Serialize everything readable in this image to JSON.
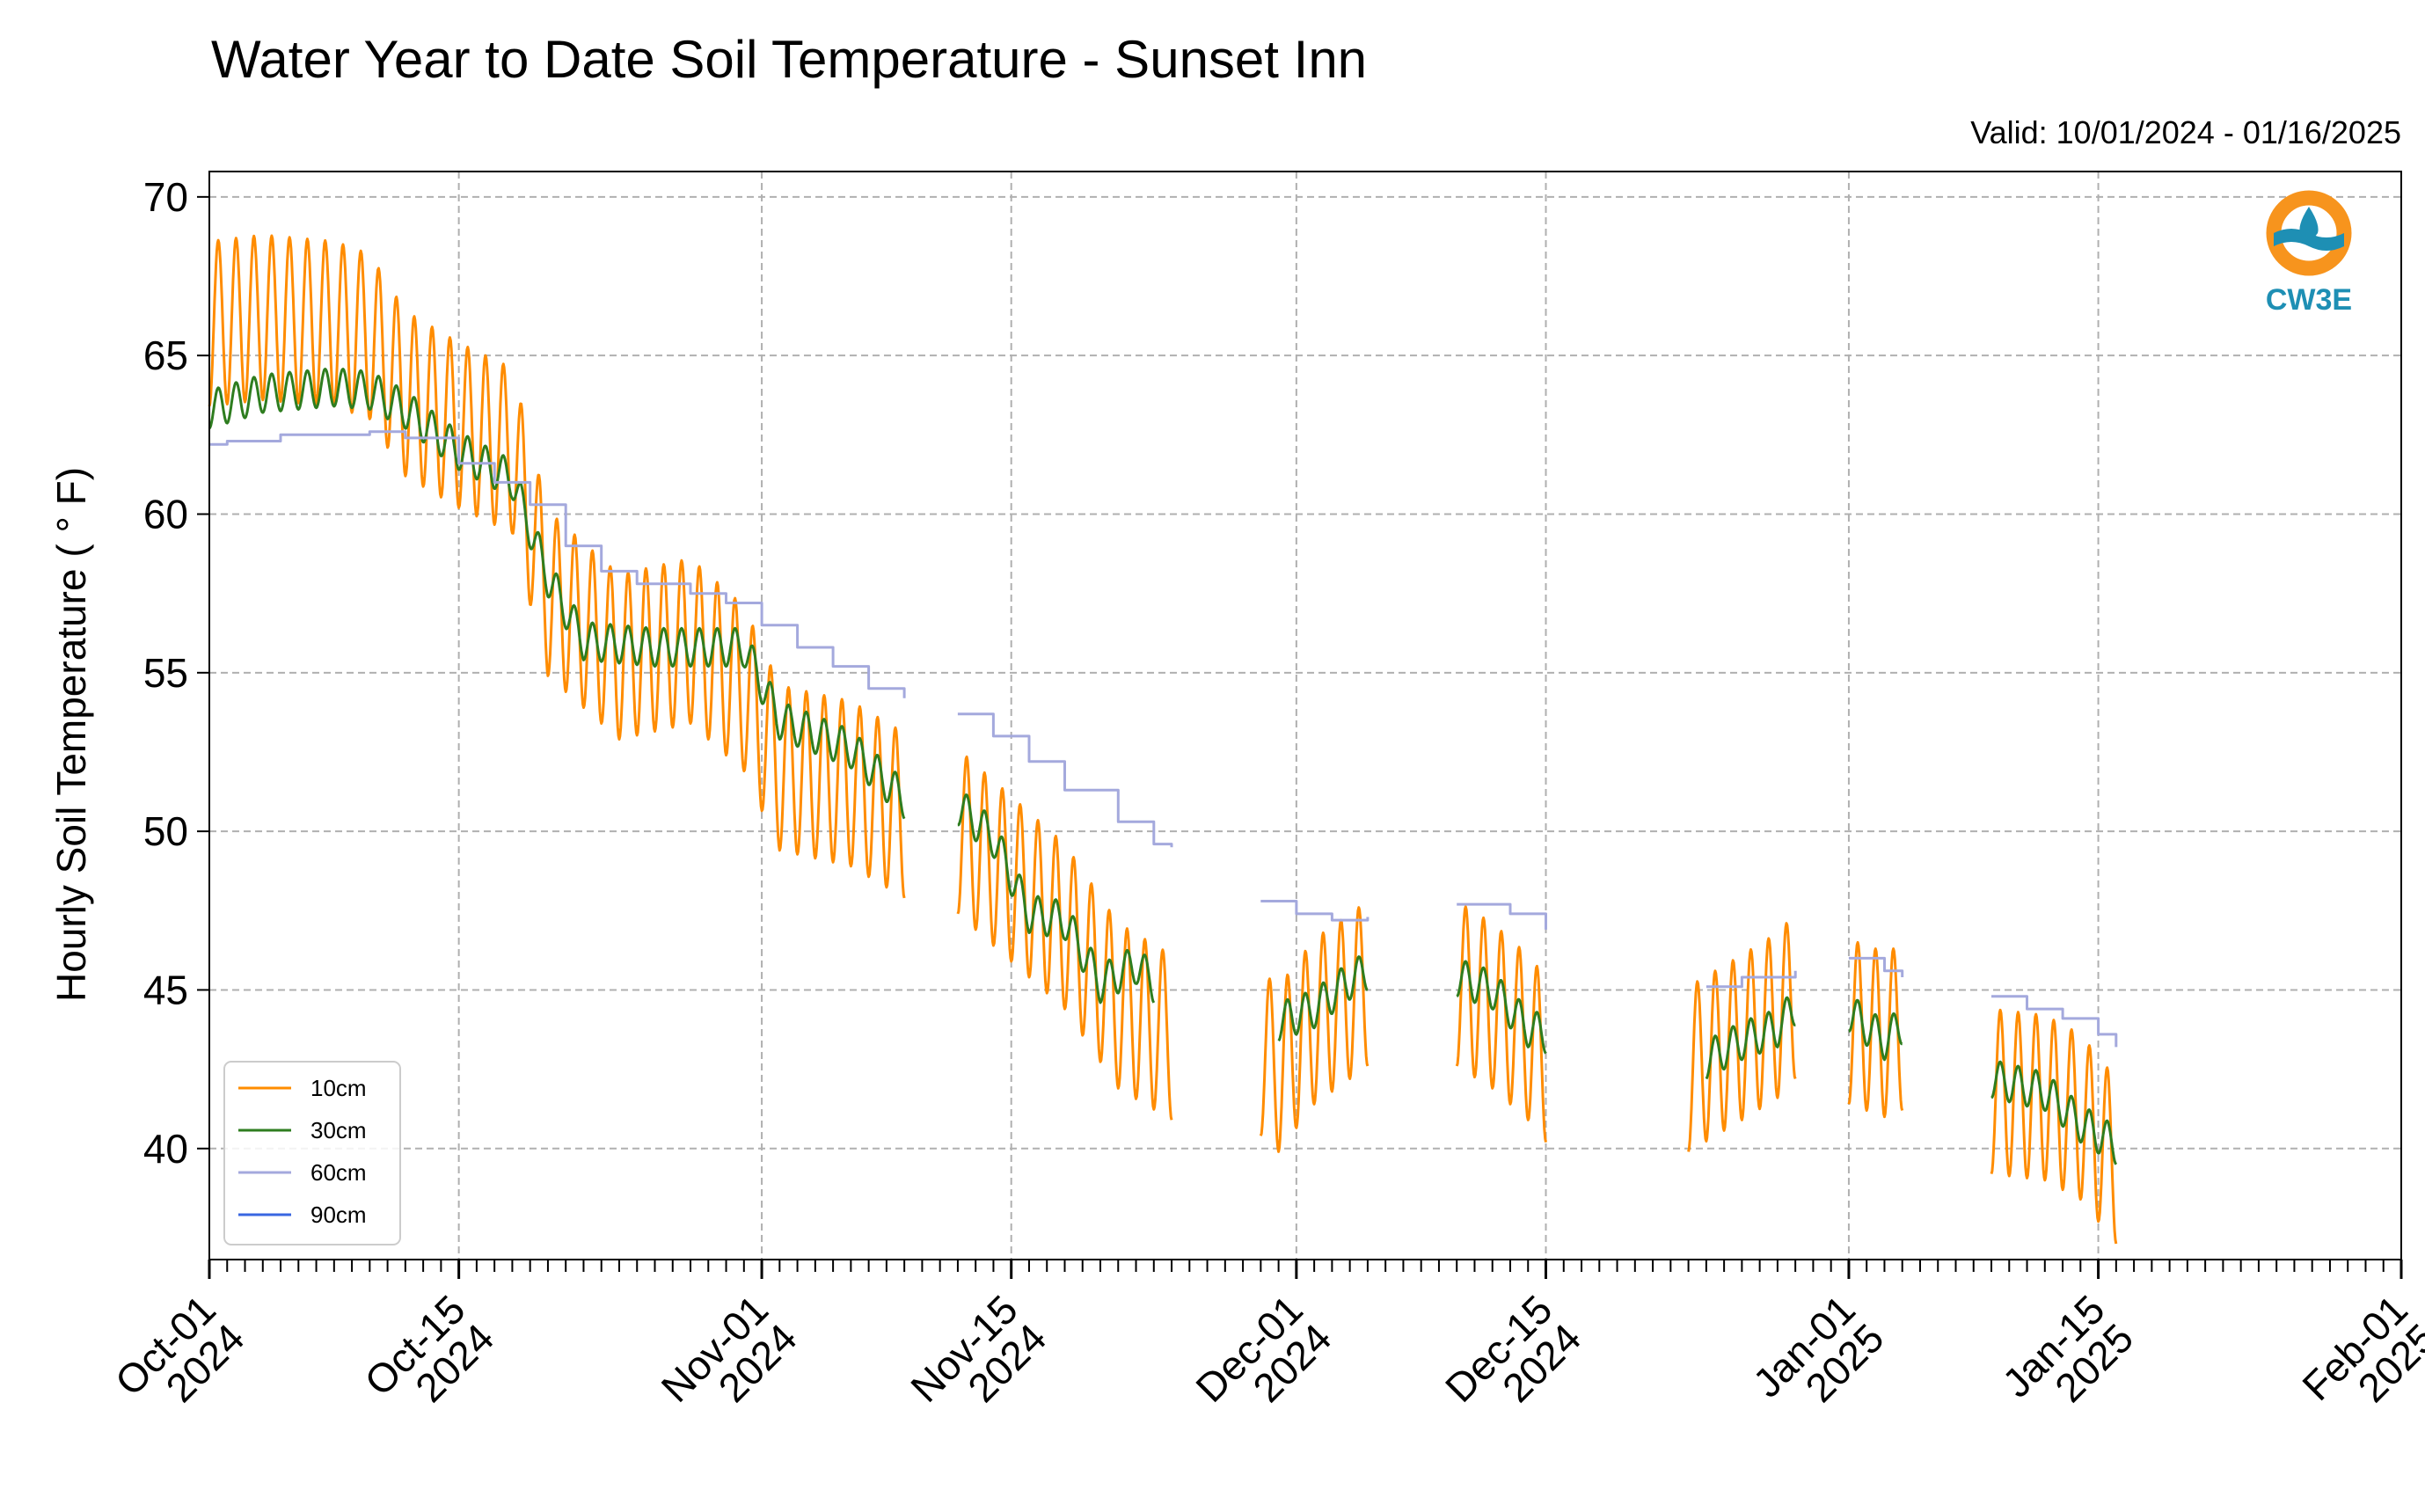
{
  "chart_data": {
    "type": "line",
    "title": "Water Year to Date Soil Temperature - Sunset Inn",
    "subtitle": "Valid: 10/01/2024 - 01/16/2025",
    "ylabel": "Hourly Soil Temperature ( ° F)",
    "xlabel": "",
    "ylim": [
      36.5,
      70.8
    ],
    "xlim": [
      "2024-10-01",
      "2025-02-01"
    ],
    "grid": true,
    "legend_position": "lower-left",
    "yticks": [
      40,
      45,
      50,
      55,
      60,
      65,
      70
    ],
    "xticks": [
      {
        "date": "2024-10-01",
        "line1": "Oct-01",
        "line2": "2024"
      },
      {
        "date": "2024-10-15",
        "line1": "Oct-15",
        "line2": "2024"
      },
      {
        "date": "2024-11-01",
        "line1": "Nov-01",
        "line2": "2024"
      },
      {
        "date": "2024-11-15",
        "line1": "Nov-15",
        "line2": "2024"
      },
      {
        "date": "2024-12-01",
        "line1": "Dec-01",
        "line2": "2024"
      },
      {
        "date": "2024-12-15",
        "line1": "Dec-15",
        "line2": "2024"
      },
      {
        "date": "2025-01-01",
        "line1": "Jan-01",
        "line2": "2025"
      },
      {
        "date": "2025-01-15",
        "line1": "Jan-15",
        "line2": "2025"
      },
      {
        "date": "2025-02-01",
        "line1": "Feb-01",
        "line2": "2025"
      }
    ],
    "series": [
      {
        "name": "10cm",
        "color": "#ff8c00",
        "amplitude": 2.6,
        "segments": [
          [
            [
              "2024-10-01",
              66.0
            ],
            [
              "2024-10-04",
              66.2
            ],
            [
              "2024-10-08",
              66.0
            ],
            [
              "2024-10-10",
              65.6
            ],
            [
              "2024-10-12",
              63.8
            ],
            [
              "2024-10-15",
              62.8
            ],
            [
              "2024-10-18",
              62.0
            ],
            [
              "2024-10-20",
              57.5
            ],
            [
              "2024-10-24",
              55.5
            ],
            [
              "2024-10-28",
              56.0
            ],
            [
              "2024-10-31",
              54.5
            ],
            [
              "2024-11-02",
              52.0
            ],
            [
              "2024-11-06",
              51.5
            ],
            [
              "2024-11-09",
              50.5
            ]
          ],
          [
            [
              "2024-11-12",
              50.0
            ],
            [
              "2024-11-15",
              48.5
            ],
            [
              "2024-11-18",
              47.0
            ],
            [
              "2024-11-21",
              44.5
            ],
            [
              "2024-11-24",
              43.5
            ]
          ],
          [
            [
              "2024-11-29",
              43.0
            ],
            [
              "2024-11-30",
              42.5
            ],
            [
              "2024-12-02",
              44.0
            ],
            [
              "2024-12-05",
              45.2
            ]
          ],
          [
            [
              "2024-12-10",
              45.2
            ],
            [
              "2024-12-12",
              44.5
            ],
            [
              "2024-12-14",
              43.5
            ],
            [
              "2024-12-15",
              42.8
            ]
          ],
          [
            [
              "2024-12-23",
              42.5
            ],
            [
              "2024-12-26",
              43.5
            ],
            [
              "2024-12-28",
              44.2
            ],
            [
              "2024-12-29",
              44.8
            ]
          ],
          [
            [
              "2025-01-01",
              44.0
            ],
            [
              "2025-01-03",
              43.6
            ],
            [
              "2025-01-04",
              43.8
            ]
          ],
          [
            [
              "2025-01-09",
              41.8
            ],
            [
              "2025-01-12",
              41.6
            ],
            [
              "2025-01-14",
              41.0
            ],
            [
              "2025-01-16",
              39.6
            ]
          ]
        ]
      },
      {
        "name": "30cm",
        "color": "#2e7d1f",
        "amplitude": 0.6,
        "segments": [
          [
            [
              "2024-10-01",
              63.3
            ],
            [
              "2024-10-04",
              63.8
            ],
            [
              "2024-10-08",
              64.0
            ],
            [
              "2024-10-10",
              63.9
            ],
            [
              "2024-10-12",
              63.3
            ],
            [
              "2024-10-15",
              62.0
            ],
            [
              "2024-10-18",
              61.1
            ],
            [
              "2024-10-20",
              58.0
            ],
            [
              "2024-10-22",
              56.0
            ],
            [
              "2024-10-26",
              55.8
            ],
            [
              "2024-10-31",
              55.8
            ],
            [
              "2024-11-02",
              53.5
            ],
            [
              "2024-11-06",
              52.6
            ],
            [
              "2024-11-09",
              51.0
            ]
          ],
          [
            [
              "2024-11-12",
              50.8
            ],
            [
              "2024-11-14",
              49.8
            ],
            [
              "2024-11-16",
              47.4
            ],
            [
              "2024-11-18",
              47.2
            ],
            [
              "2024-11-20",
              45.2
            ],
            [
              "2024-11-22",
              45.8
            ],
            [
              "2024-11-23",
              45.2
            ]
          ],
          [
            [
              "2024-11-30",
              44.0
            ],
            [
              "2024-12-02",
              44.4
            ],
            [
              "2024-12-04",
              45.3
            ],
            [
              "2024-12-05",
              45.6
            ]
          ],
          [
            [
              "2024-12-10",
              45.4
            ],
            [
              "2024-12-12",
              45.0
            ],
            [
              "2024-12-14",
              43.8
            ],
            [
              "2024-12-15",
              43.6
            ]
          ],
          [
            [
              "2024-12-24",
              42.8
            ],
            [
              "2024-12-26",
              43.4
            ],
            [
              "2024-12-28",
              43.8
            ],
            [
              "2024-12-29",
              44.5
            ]
          ],
          [
            [
              "2025-01-01",
              44.3
            ],
            [
              "2025-01-03",
              43.4
            ],
            [
              "2025-01-04",
              43.9
            ]
          ],
          [
            [
              "2025-01-09",
              42.2
            ],
            [
              "2025-01-12",
              41.8
            ],
            [
              "2025-01-14",
              40.8
            ],
            [
              "2025-01-16",
              40.1
            ]
          ]
        ]
      },
      {
        "name": "60cm",
        "color": "#a4a9dd",
        "amplitude": 0,
        "segments": [
          [
            [
              "2024-10-01",
              62.2
            ],
            [
              "2024-10-02",
              62.3
            ],
            [
              "2024-10-05",
              62.5
            ],
            [
              "2024-10-10",
              62.6
            ],
            [
              "2024-10-12",
              62.4
            ],
            [
              "2024-10-15",
              61.6
            ],
            [
              "2024-10-17",
              61.0
            ],
            [
              "2024-10-19",
              60.3
            ],
            [
              "2024-10-21",
              59.0
            ],
            [
              "2024-10-23",
              58.2
            ],
            [
              "2024-10-25",
              57.8
            ],
            [
              "2024-10-28",
              57.5
            ],
            [
              "2024-10-30",
              57.2
            ],
            [
              "2024-11-01",
              56.5
            ],
            [
              "2024-11-03",
              55.8
            ],
            [
              "2024-11-05",
              55.2
            ],
            [
              "2024-11-07",
              54.5
            ],
            [
              "2024-11-09",
              54.2
            ]
          ],
          [
            [
              "2024-11-12",
              53.7
            ],
            [
              "2024-11-14",
              53.0
            ],
            [
              "2024-11-16",
              52.2
            ],
            [
              "2024-11-18",
              51.3
            ],
            [
              "2024-11-21",
              50.3
            ],
            [
              "2024-11-23",
              49.6
            ],
            [
              "2024-11-24",
              49.5
            ]
          ],
          [
            [
              "2024-11-29",
              47.8
            ],
            [
              "2024-12-01",
              47.4
            ],
            [
              "2024-12-03",
              47.2
            ],
            [
              "2024-12-05",
              47.3
            ]
          ],
          [
            [
              "2024-12-10",
              47.7
            ],
            [
              "2024-12-13",
              47.4
            ],
            [
              "2024-12-15",
              46.9
            ]
          ],
          [
            [
              "2024-12-24",
              45.1
            ],
            [
              "2024-12-26",
              45.4
            ],
            [
              "2024-12-29",
              45.6
            ]
          ],
          [
            [
              "2025-01-01",
              46.0
            ],
            [
              "2025-01-03",
              45.6
            ],
            [
              "2025-01-04",
              45.4
            ]
          ],
          [
            [
              "2025-01-09",
              44.8
            ],
            [
              "2025-01-11",
              44.4
            ],
            [
              "2025-01-13",
              44.1
            ],
            [
              "2025-01-15",
              43.6
            ],
            [
              "2025-01-16",
              43.2
            ]
          ]
        ]
      },
      {
        "name": "90cm",
        "color": "#3866e0",
        "amplitude": 0,
        "segments": []
      }
    ]
  },
  "logo": {
    "text": "CW3E",
    "ring_color": "#f7941d",
    "wave_color": "#1e8fb4"
  }
}
